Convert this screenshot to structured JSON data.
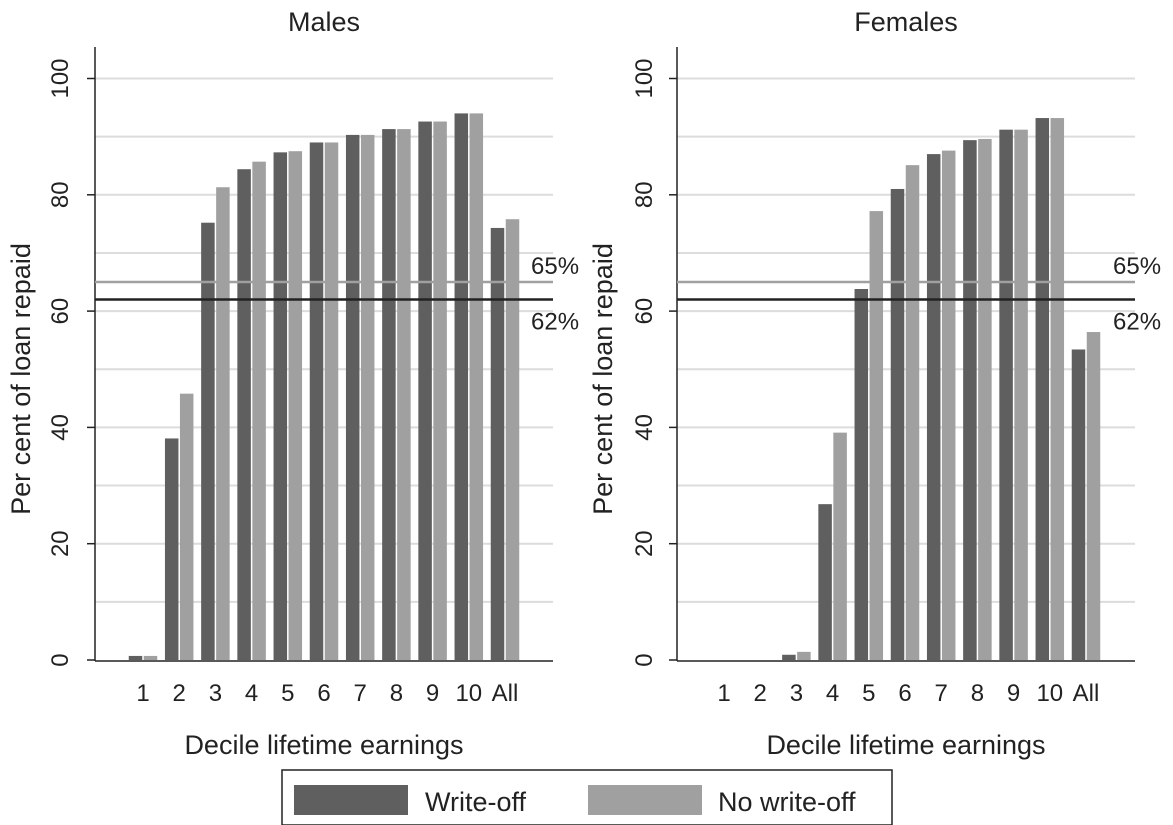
{
  "chart_data": [
    {
      "type": "bar",
      "title": "Males",
      "xlabel": "Decile lifetime earnings",
      "ylabel": "Per cent of loan repaid",
      "categories": [
        "1",
        "2",
        "3",
        "4",
        "5",
        "6",
        "7",
        "8",
        "9",
        "10",
        "All"
      ],
      "ylim": [
        0,
        100
      ],
      "yticks": [
        0,
        20,
        40,
        60,
        80,
        100
      ],
      "grid": true,
      "series": [
        {
          "name": "Write-off",
          "color": "#5f5f5f",
          "values": [
            0.7,
            38.1,
            75.2,
            84.4,
            87.3,
            89.0,
            90.3,
            91.3,
            92.6,
            94.0,
            74.3
          ]
        },
        {
          "name": "No write-off",
          "color": "#a0a0a0",
          "values": [
            0.7,
            45.8,
            81.3,
            85.7,
            87.5,
            89.0,
            90.3,
            91.3,
            92.6,
            94.0,
            75.8
          ]
        }
      ],
      "reference_lines": [
        {
          "value": 65,
          "label": "65%",
          "color": "#a0a0a0"
        },
        {
          "value": 62,
          "label": "62%",
          "color": "#222222"
        }
      ]
    },
    {
      "type": "bar",
      "title": "Females",
      "xlabel": "Decile lifetime earnings",
      "ylabel": "Per cent of loan repaid",
      "categories": [
        "1",
        "2",
        "3",
        "4",
        "5",
        "6",
        "7",
        "8",
        "9",
        "10",
        "All"
      ],
      "ylim": [
        0,
        100
      ],
      "yticks": [
        0,
        20,
        40,
        60,
        80,
        100
      ],
      "grid": true,
      "series": [
        {
          "name": "Write-off",
          "color": "#5f5f5f",
          "values": [
            0,
            0,
            0.9,
            26.8,
            63.8,
            81.0,
            87.0,
            89.4,
            91.2,
            93.2,
            53.4
          ]
        },
        {
          "name": "No write-off",
          "color": "#a0a0a0",
          "values": [
            0,
            0,
            1.4,
            39.1,
            77.2,
            85.1,
            87.6,
            89.6,
            91.2,
            93.2,
            56.4
          ]
        }
      ],
      "reference_lines": [
        {
          "value": 65,
          "label": "65%",
          "color": "#a0a0a0"
        },
        {
          "value": 62,
          "label": "62%",
          "color": "#222222"
        }
      ]
    }
  ],
  "legend": {
    "position": "bottom-center",
    "items": [
      {
        "label": "Write-off",
        "color": "#5f5f5f"
      },
      {
        "label": "No write-off",
        "color": "#a0a0a0"
      }
    ]
  }
}
